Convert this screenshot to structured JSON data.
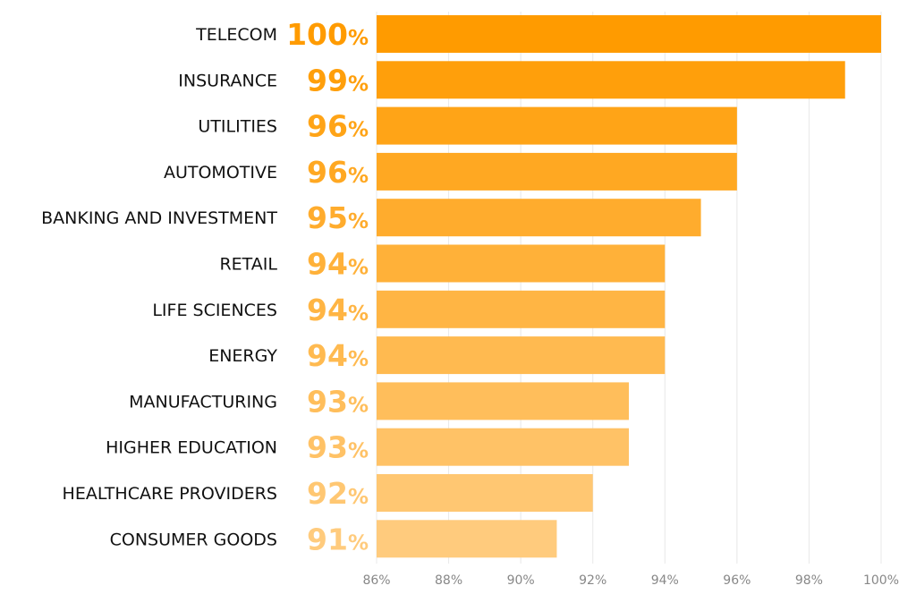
{
  "chart_data": {
    "type": "bar",
    "orientation": "horizontal",
    "categories": [
      "TELECOM",
      "INSURANCE",
      "UTILITIES",
      "AUTOMOTIVE",
      "BANKING AND INVESTMENT",
      "RETAIL",
      "LIFE SCIENCES",
      "ENERGY",
      "MANUFACTURING",
      "HIGHER EDUCATION",
      "HEALTHCARE PROVIDERS",
      "CONSUMER GOODS"
    ],
    "values": [
      100,
      99,
      96,
      96,
      95,
      94,
      94,
      94,
      93,
      93,
      92,
      91
    ],
    "value_labels": [
      "100",
      "99",
      "96",
      "96",
      "95",
      "94",
      "94",
      "94",
      "93",
      "93",
      "92",
      "91"
    ],
    "value_suffix": "%",
    "xlim": [
      86,
      100
    ],
    "xticks": [
      "86%",
      "88%",
      "90%",
      "92%",
      "94%",
      "96%",
      "98%",
      "100%"
    ],
    "grid": true,
    "colors": {
      "start": "#FF9B00",
      "end": "#FFCB7D",
      "tick": "#888888",
      "grid": "#E8E8E8"
    }
  }
}
